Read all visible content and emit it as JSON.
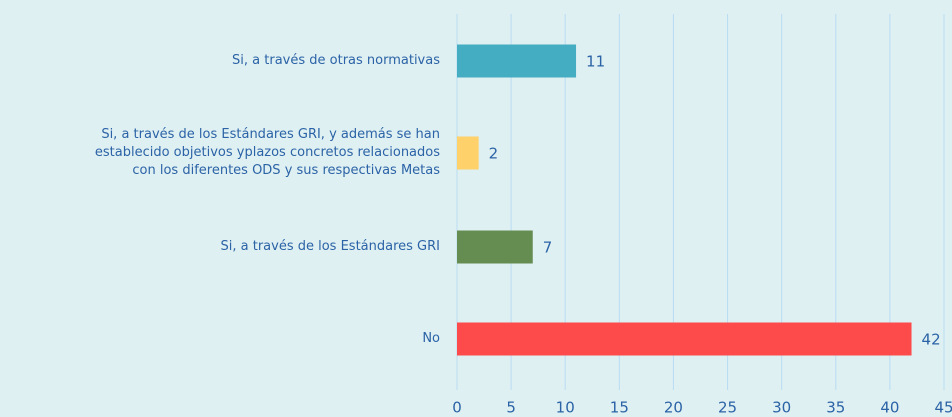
{
  "chart_data": {
    "type": "barh",
    "categories": [
      "Si, a través de otras normativas",
      "Si, a través de los Estándares GRI, y además se han\nestablecido objetivos yplazos concretos relacionados\ncon los diferentes ODS y sus respectivas Metas",
      "Si, a través de los Estándares GRI",
      "No"
    ],
    "values": [
      11,
      2,
      7,
      42
    ],
    "colors": [
      "#45adc2",
      "#fed16a",
      "#658d52",
      "#fd4a4a"
    ],
    "xlim": [
      0,
      45
    ],
    "xticks": [
      0,
      5,
      10,
      15,
      20,
      25,
      30,
      35,
      40,
      45
    ],
    "grid": true
  }
}
